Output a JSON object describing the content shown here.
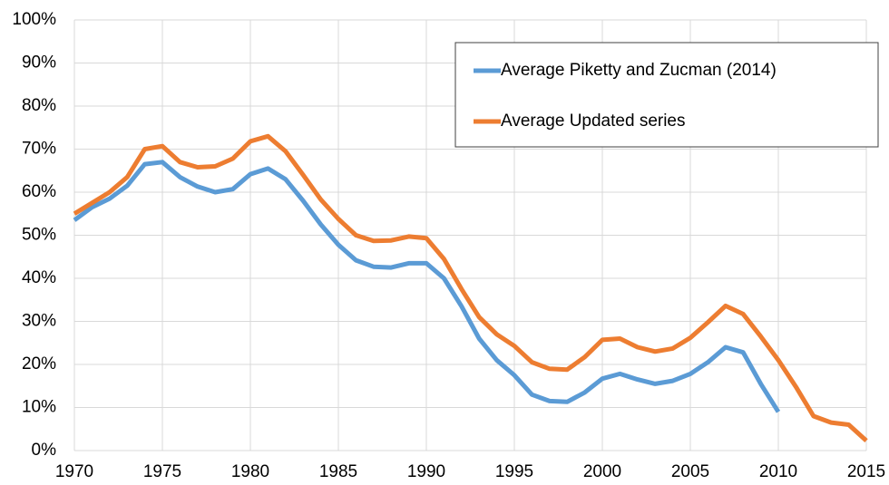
{
  "chart_data": {
    "type": "line",
    "x": [
      1970,
      1971,
      1972,
      1973,
      1974,
      1975,
      1976,
      1977,
      1978,
      1979,
      1980,
      1981,
      1982,
      1983,
      1984,
      1985,
      1986,
      1987,
      1988,
      1989,
      1990,
      1991,
      1992,
      1993,
      1994,
      1995,
      1996,
      1997,
      1998,
      1999,
      2000,
      2001,
      2002,
      2003,
      2004,
      2005,
      2006,
      2007,
      2008,
      2009,
      2010,
      2011,
      2012,
      2013,
      2014,
      2015
    ],
    "series": [
      {
        "name": "Average Piketty and Zucman (2014)",
        "color": "#5b9bd5",
        "values": [
          53.5,
          56.5,
          58.5,
          61.5,
          66.5,
          67,
          63.5,
          61.3,
          60,
          60.7,
          64.2,
          65.5,
          63,
          58,
          52.5,
          47.8,
          44.2,
          42.7,
          42.5,
          43.5,
          43.5,
          40,
          33.5,
          26,
          21,
          17.5,
          13,
          11.5,
          11.3,
          13.5,
          16.7,
          17.8,
          16.5,
          15.5,
          16.2,
          17.8,
          20.5,
          24,
          22.8,
          15.5,
          9,
          null,
          null,
          null,
          null,
          null
        ]
      },
      {
        "name": "Average Updated series",
        "color": "#ed7d31",
        "values": [
          55,
          57.5,
          60,
          63.5,
          70,
          70.7,
          67,
          65.8,
          66,
          67.8,
          71.8,
          73,
          69.5,
          64,
          58.3,
          53.8,
          50,
          48.7,
          48.8,
          49.7,
          49.3,
          44.5,
          37.5,
          31,
          27,
          24.3,
          20.5,
          19,
          18.8,
          21.7,
          25.7,
          26,
          24,
          23,
          23.7,
          26.2,
          29.8,
          33.6,
          31.7,
          26.5,
          21,
          14.8,
          8,
          6.5,
          6,
          2.3
        ]
      }
    ],
    "xlim": [
      1970,
      2015
    ],
    "xticks": [
      1970,
      1975,
      1980,
      1985,
      1990,
      1995,
      2000,
      2005,
      2010,
      2015
    ],
    "ylim": [
      0,
      100
    ],
    "yticks": [
      {
        "value": 0,
        "label": "0%"
      },
      {
        "value": 10,
        "label": "10%"
      },
      {
        "value": 20,
        "label": "20%"
      },
      {
        "value": 30,
        "label": "30%"
      },
      {
        "value": 40,
        "label": "40%"
      },
      {
        "value": 50,
        "label": "50%"
      },
      {
        "value": 60,
        "label": "60%"
      },
      {
        "value": 70,
        "label": "70%"
      },
      {
        "value": 80,
        "label": "80%"
      },
      {
        "value": 90,
        "label": "90%"
      },
      {
        "value": 100,
        "label": "100%"
      }
    ],
    "grid": true,
    "legend": "upper right"
  }
}
